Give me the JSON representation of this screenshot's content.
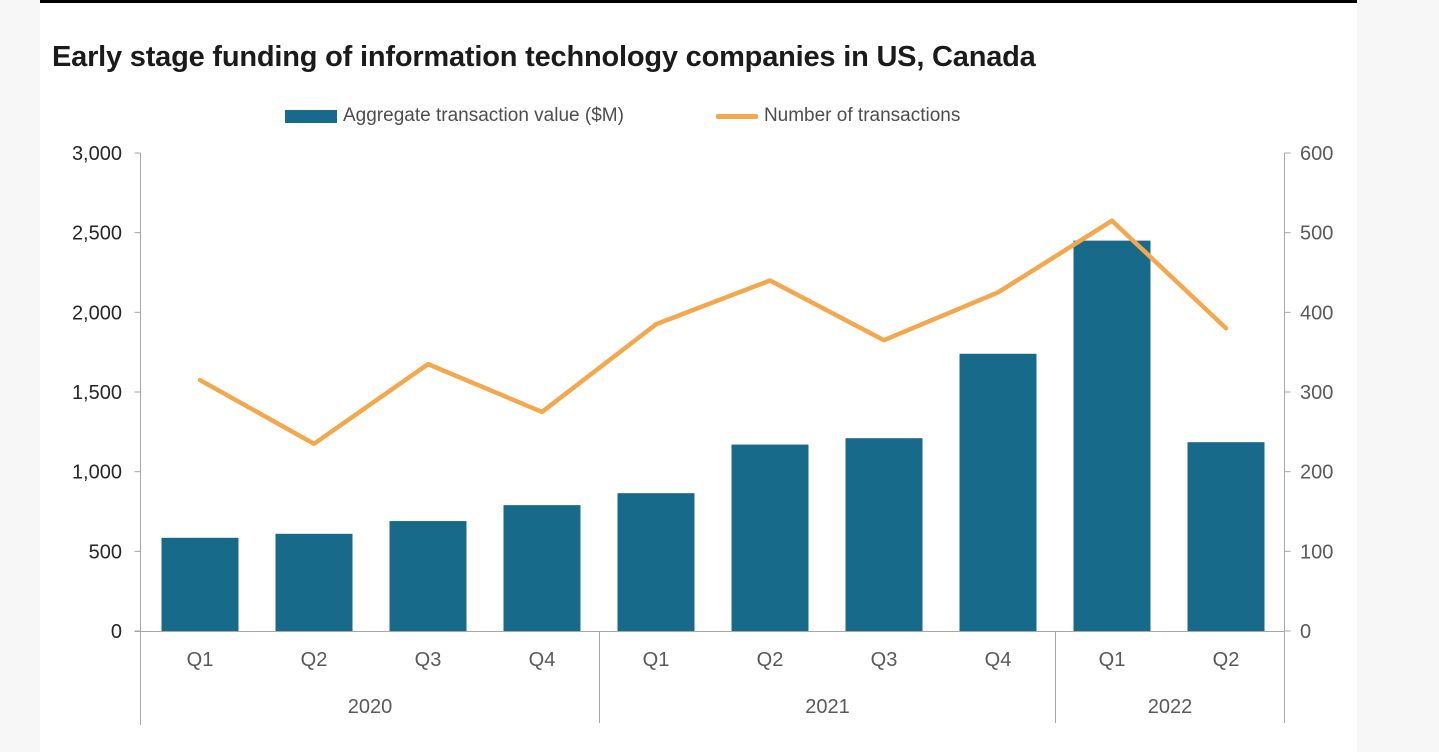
{
  "page": {
    "title": "Early stage funding of information technology companies in US, Canada"
  },
  "legend": {
    "items": [
      {
        "label": "Aggregate transaction value ($M)",
        "swatch": "bar-swatch-icon",
        "color": "#176a89"
      },
      {
        "label": "Number of transactions",
        "swatch": "line-swatch-icon",
        "color": "#f4a84e"
      }
    ]
  },
  "chart_data": {
    "type": "bar",
    "subtype": "combo bar + line, dual axis",
    "title": "Early stage funding of information technology companies in US, Canada",
    "categories": [
      "Q1",
      "Q2",
      "Q3",
      "Q4",
      "Q1",
      "Q2",
      "Q3",
      "Q4",
      "Q1",
      "Q2"
    ],
    "year_groups": [
      {
        "year": "2020",
        "quarters": 4
      },
      {
        "year": "2021",
        "quarters": 4
      },
      {
        "year": "2022",
        "quarters": 2
      }
    ],
    "series": [
      {
        "name": "Aggregate transaction value ($M)",
        "type": "bar",
        "axis": "left",
        "color": "#176a89",
        "values": [
          585,
          610,
          690,
          790,
          865,
          1170,
          1210,
          1740,
          2450,
          1185
        ]
      },
      {
        "name": "Number of transactions",
        "type": "line",
        "axis": "right",
        "color": "#f4a84e",
        "values": [
          315,
          235,
          335,
          275,
          385,
          440,
          365,
          425,
          515,
          380
        ]
      }
    ],
    "left_axis": {
      "min": 0,
      "max": 3000,
      "step": 500,
      "tick_labels": [
        "0",
        "500",
        "1,000",
        "1,500",
        "2,000",
        "2,500",
        "3,000"
      ]
    },
    "right_axis": {
      "min": 0,
      "max": 600,
      "step": 100,
      "tick_labels": [
        "0",
        "100",
        "200",
        "300",
        "400",
        "500",
        "600"
      ]
    },
    "grid": false,
    "legend_position": "top-center"
  },
  "colors": {
    "bar": "#176a89",
    "line": "#f4a84e",
    "axis_line": "#a6a6a6",
    "left_tick_text": "#262626",
    "right_tick_text": "#595959",
    "category_text": "#595959",
    "title_text": "#1b1b1b"
  }
}
